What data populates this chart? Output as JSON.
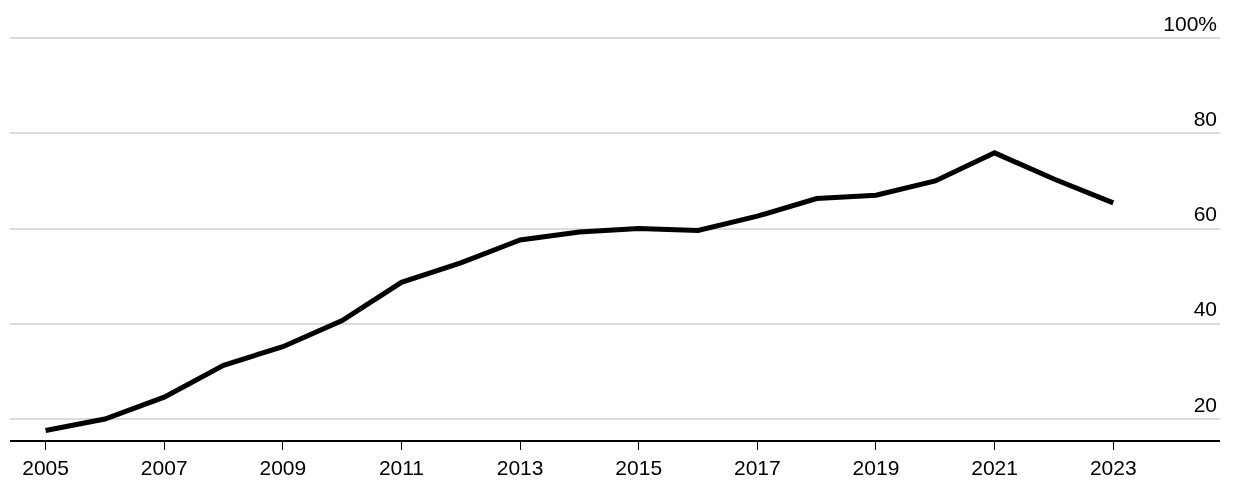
{
  "chart_data": {
    "type": "line",
    "x": [
      2005,
      2006,
      2007,
      2008,
      2009,
      2010,
      2011,
      2012,
      2013,
      2014,
      2015,
      2016,
      2017,
      2018,
      2019,
      2020,
      2021,
      2022,
      2023
    ],
    "series": [
      {
        "color": "#000000",
        "values": [
          17.6,
          20.0,
          24.6,
          31.3,
          35.2,
          40.7,
          48.7,
          52.8,
          57.6,
          59.3,
          60.0,
          59.6,
          62.6,
          66.3,
          67.0,
          70.0,
          75.9,
          70.4,
          65.4
        ]
      }
    ],
    "xlim": [
      2004.4,
      2024.8
    ],
    "xticks": [
      2005,
      2007,
      2009,
      2011,
      2013,
      2015,
      2017,
      2019,
      2021,
      2023
    ],
    "ylim": [
      15.6,
      108
    ],
    "yticks": [
      20,
      40,
      60,
      80,
      {
        "value": 100,
        "label": "100%"
      }
    ],
    "grid": "y",
    "marker": "none",
    "line_style": "solid"
  }
}
